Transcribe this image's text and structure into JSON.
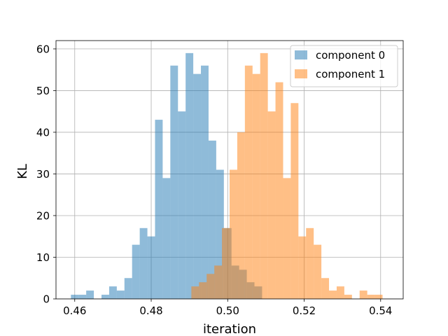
{
  "chart_data": {
    "type": "bar",
    "xlabel": "iteration",
    "ylabel": "KL",
    "xlim": [
      0.4551,
      0.5459
    ],
    "ylim": [
      0,
      62
    ],
    "grid": true,
    "legend_position": "top-right",
    "bin_width": 0.002,
    "x_ticks": [
      "0.46",
      "0.48",
      "0.50",
      "0.52",
      "0.54"
    ],
    "x_tick_values": [
      0.46,
      0.48,
      0.5,
      0.52,
      0.54
    ],
    "y_ticks": [
      "0",
      "10",
      "20",
      "30",
      "40",
      "50",
      "60"
    ],
    "y_tick_values": [
      0,
      10,
      20,
      30,
      40,
      50,
      60
    ],
    "series": [
      {
        "name": "component 0",
        "color": "#1f77b4",
        "opacity": 0.5,
        "bin_starts": [
          0.459,
          0.461,
          0.463,
          0.465,
          0.467,
          0.469,
          0.471,
          0.473,
          0.475,
          0.477,
          0.479,
          0.481,
          0.483,
          0.485,
          0.487,
          0.489,
          0.491,
          0.493,
          0.495,
          0.497,
          0.499,
          0.501,
          0.503,
          0.505,
          0.507,
          0.509
        ],
        "counts": [
          1,
          1,
          2,
          0,
          1,
          3,
          2,
          5,
          13,
          17,
          15,
          43,
          29,
          56,
          45,
          59,
          54,
          56,
          38,
          31,
          17,
          8,
          7,
          4,
          3,
          0
        ]
      },
      {
        "name": "component 1",
        "color": "#ff7f0e",
        "opacity": 0.5,
        "bin_starts": [
          0.4905,
          0.4925,
          0.4945,
          0.4965,
          0.4985,
          0.5005,
          0.5025,
          0.5045,
          0.5065,
          0.5085,
          0.5105,
          0.5125,
          0.5145,
          0.5165,
          0.5185,
          0.5205,
          0.5225,
          0.5245,
          0.5265,
          0.5285,
          0.5305,
          0.5325,
          0.5345,
          0.5365,
          0.5385,
          0.5405
        ],
        "counts": [
          3,
          4,
          6,
          8,
          17,
          31,
          40,
          56,
          54,
          59,
          45,
          52,
          29,
          47,
          15,
          17,
          13,
          5,
          2,
          3,
          1,
          0,
          2,
          1,
          1,
          0
        ]
      }
    ]
  }
}
